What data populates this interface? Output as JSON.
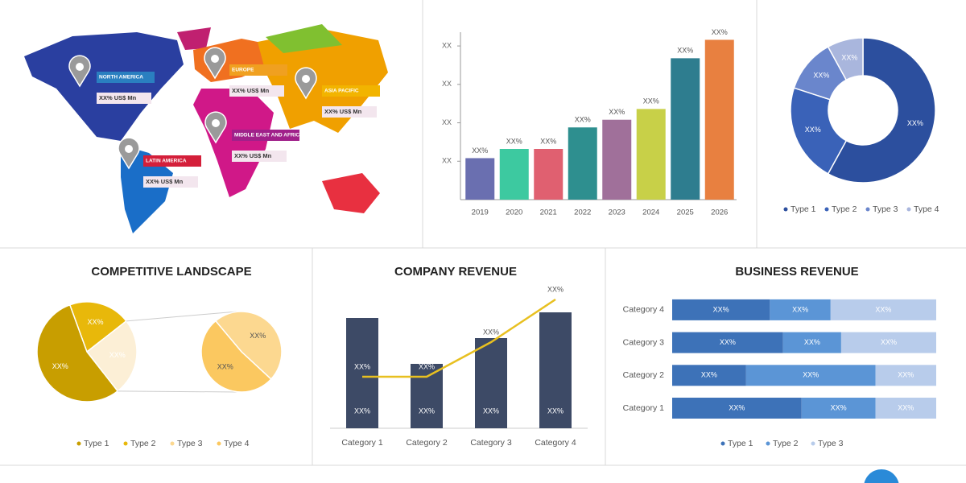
{
  "map": {
    "regions": [
      {
        "name": "NORTH AMERICA",
        "value": "XX% US$ Mn",
        "color": "#2a7fc0"
      },
      {
        "name": "EUROPE",
        "value": "XX% US$ Mn",
        "color": "#f0a020"
      },
      {
        "name": "ASIA PACIFIC",
        "value": "XX% US$ Mn",
        "color": "#f2b400"
      },
      {
        "name": "MIDDLE EAST AND AFRICA",
        "value": "XX% US$ Mn",
        "color": "#a0208a"
      },
      {
        "name": "LATIN AMERICA",
        "value": "XX% US$ Mn",
        "color": "#d41f3a"
      }
    ]
  },
  "chart_data": [
    {
      "type": "bar",
      "categories": [
        "2019",
        "2020",
        "2021",
        "2022",
        "2023",
        "2024",
        "2025",
        "2026"
      ],
      "values": [
        27,
        33,
        33,
        47,
        52,
        59,
        92,
        104
      ],
      "value_labels": [
        "XX%",
        "XX%",
        "XX%",
        "XX%",
        "XX%",
        "XX%",
        "XX%",
        "XX%"
      ],
      "colors": [
        "#6a6fb0",
        "#3dc9a0",
        "#e06070",
        "#2e8f8f",
        "#a0709a",
        "#c8d048",
        "#2e7d8f",
        "#e88040"
      ],
      "ylim": [
        0,
        110
      ],
      "yticks": [
        {
          "value": 25,
          "label": "XX"
        },
        {
          "value": 50,
          "label": "XX"
        },
        {
          "value": 75,
          "label": "XX"
        },
        {
          "value": 100,
          "label": "XX"
        }
      ]
    },
    {
      "type": "donut",
      "categories": [
        "Type 1",
        "Type 2",
        "Type 3",
        "Type 4"
      ],
      "values": [
        58,
        22,
        12,
        8
      ],
      "value_labels": [
        "XX%",
        "XX%",
        "XX%",
        "XX%"
      ],
      "colors": [
        "#2c4f9e",
        "#3a62b8",
        "#6a86cc",
        "#a9b6dd"
      ]
    },
    {
      "type": "pie-of-pie",
      "title": "COMPETITIVE LANDSCAPE",
      "values": [
        55,
        20,
        25
      ],
      "value_labels": [
        "XX%",
        "XX%",
        "XX%"
      ],
      "colors": [
        "#c89e00",
        "#e8b80a",
        "#fcefd6"
      ],
      "secondary": {
        "values": [
          12,
          13
        ],
        "value_labels": [
          "XX%",
          "XX%"
        ],
        "colors": [
          "#fcd890",
          "#fbc860"
        ]
      },
      "legend": {
        "labels": [
          "Type 1",
          "Type 2",
          "Type 3",
          "Type 4"
        ],
        "colors": [
          "#c89e00",
          "#e8b80a",
          "#fcd890",
          "#fbc860"
        ]
      }
    },
    {
      "type": "bar-line",
      "title": "COMPANY REVENUE",
      "categories": [
        "Category 1",
        "Category 2",
        "Category 3",
        "Category 4"
      ],
      "series": [
        {
          "kind": "bar",
          "color": "#3d4a66",
          "values": [
            137,
            80,
            112,
            144
          ],
          "value_labels": [
            "XX%",
            "XX%",
            "XX%",
            "XX%"
          ]
        },
        {
          "kind": "line",
          "color": "#e8c020",
          "values": [
            64,
            64,
            107,
            160
          ],
          "value_labels": [
            "XX%",
            "XX%",
            "XX%",
            "XX%"
          ]
        }
      ]
    },
    {
      "type": "stacked-barh",
      "title": "BUSINESS REVENUE",
      "categories": [
        "Category 1",
        "Category 2",
        "Category 3",
        "Category 4"
      ],
      "xlim": [
        0,
        100
      ],
      "series": [
        {
          "name": "Type 1",
          "color": "#3d72b8",
          "values": [
            49,
            28,
            42,
            37
          ],
          "value_labels": [
            "XX%",
            "XX%",
            "XX%",
            "XX%"
          ]
        },
        {
          "name": "Type 2",
          "color": "#5b95d6",
          "values": [
            28,
            49,
            22,
            23
          ],
          "value_labels": [
            "XX%",
            "XX%",
            "XX%",
            "XX%"
          ]
        },
        {
          "name": "Type 3",
          "color": "#b8cceb",
          "values": [
            23,
            23,
            36,
            40
          ],
          "value_labels": [
            "XX%",
            "XX%",
            "XX%",
            "XX%"
          ]
        }
      ]
    }
  ]
}
